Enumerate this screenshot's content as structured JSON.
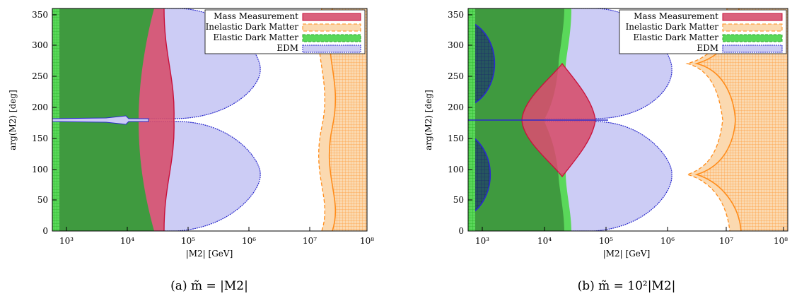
{
  "colors": {
    "mass": "#d6506e",
    "mass_edge": "#c8103a",
    "inelastic": "#fbd9b0",
    "inelastic_edge": "#ff8c1a",
    "elastic": "#5ad85a",
    "elastic_edge": "#2aaa2a",
    "edm": "#ccccf5",
    "edm_edge": "#2a2acc",
    "overlap": "#3f9a3f",
    "axis": "#000000"
  },
  "chart_data": [
    {
      "type": "area",
      "panel": "a",
      "caption": "(a) m̃ = |M2|",
      "xlabel": "|M2| [GeV]",
      "ylabel": "arg(M2) [deg]",
      "xscale": "log",
      "xlim": [
        600,
        130000000
      ],
      "ylim": [
        0,
        360
      ],
      "x_ticks": [
        "10³",
        "10⁴",
        "10⁵",
        "10⁶",
        "10⁷",
        "10⁸"
      ],
      "x_tick_values": [
        1000,
        10000,
        100000,
        1000000,
        10000000,
        100000000
      ],
      "y_ticks": [
        0,
        50,
        100,
        150,
        200,
        250,
        300,
        350
      ],
      "legend": {
        "position": "top-right",
        "entries": [
          "Mass Measurement",
          "Inelastic Dark Matter",
          "Elastic Dark Matter",
          "EDM"
        ]
      },
      "regions": {
        "elastic_dark_matter": {
          "x_max": 830
        },
        "edm_lobes": {
          "x_boundary_at_90_deg": 1700000,
          "gap_center_deg": 180
        },
        "mass_measurement": {
          "x_at_0_deg": 44000,
          "x_at_180_deg": 18000
        },
        "inelastic_dark_matter": {
          "inner_x_at_90_deg": 22000000,
          "outer_x_at_90_deg": 30000000
        },
        "overlap_green": {
          "x_max": 30000
        }
      }
    },
    {
      "type": "area",
      "panel": "b",
      "caption": "(b) m̃ = 10²|M2|",
      "xlabel": "|M2| [GeV]",
      "ylabel": "arg(M2) [deg]",
      "xscale": "log",
      "xlim": [
        600,
        130000000
      ],
      "ylim": [
        0,
        360
      ],
      "x_ticks": [
        "10³",
        "10⁴",
        "10⁵",
        "10⁶",
        "10⁷",
        "10⁸"
      ],
      "x_tick_values": [
        1000,
        10000,
        100000,
        1000000,
        10000000,
        100000000
      ],
      "y_ticks": [
        0,
        50,
        100,
        150,
        200,
        250,
        300,
        350
      ],
      "legend": {
        "position": "top-right",
        "entries": [
          "Mass Measurement",
          "Inelastic Dark Matter",
          "Elastic Dark Matter",
          "EDM"
        ]
      },
      "regions": {
        "elastic_dark_matter": {
          "x_max": 830
        },
        "edm_lobes": {
          "x_boundary_at_90_deg": 2500000,
          "gap_center_deg": 180
        },
        "mass_measurement": {
          "x_at_180_deg_left": 5000,
          "x_at_180_deg_right": 80000,
          "x_at_70_deg": 25000
        },
        "inelastic_dark_matter": {
          "cusp_x": 2700000,
          "outer_x_at_0_deg": 35000000
        },
        "dark_blue_circles": {
          "x_max": 2000,
          "y_centers": [
            90,
            270
          ]
        }
      }
    }
  ]
}
